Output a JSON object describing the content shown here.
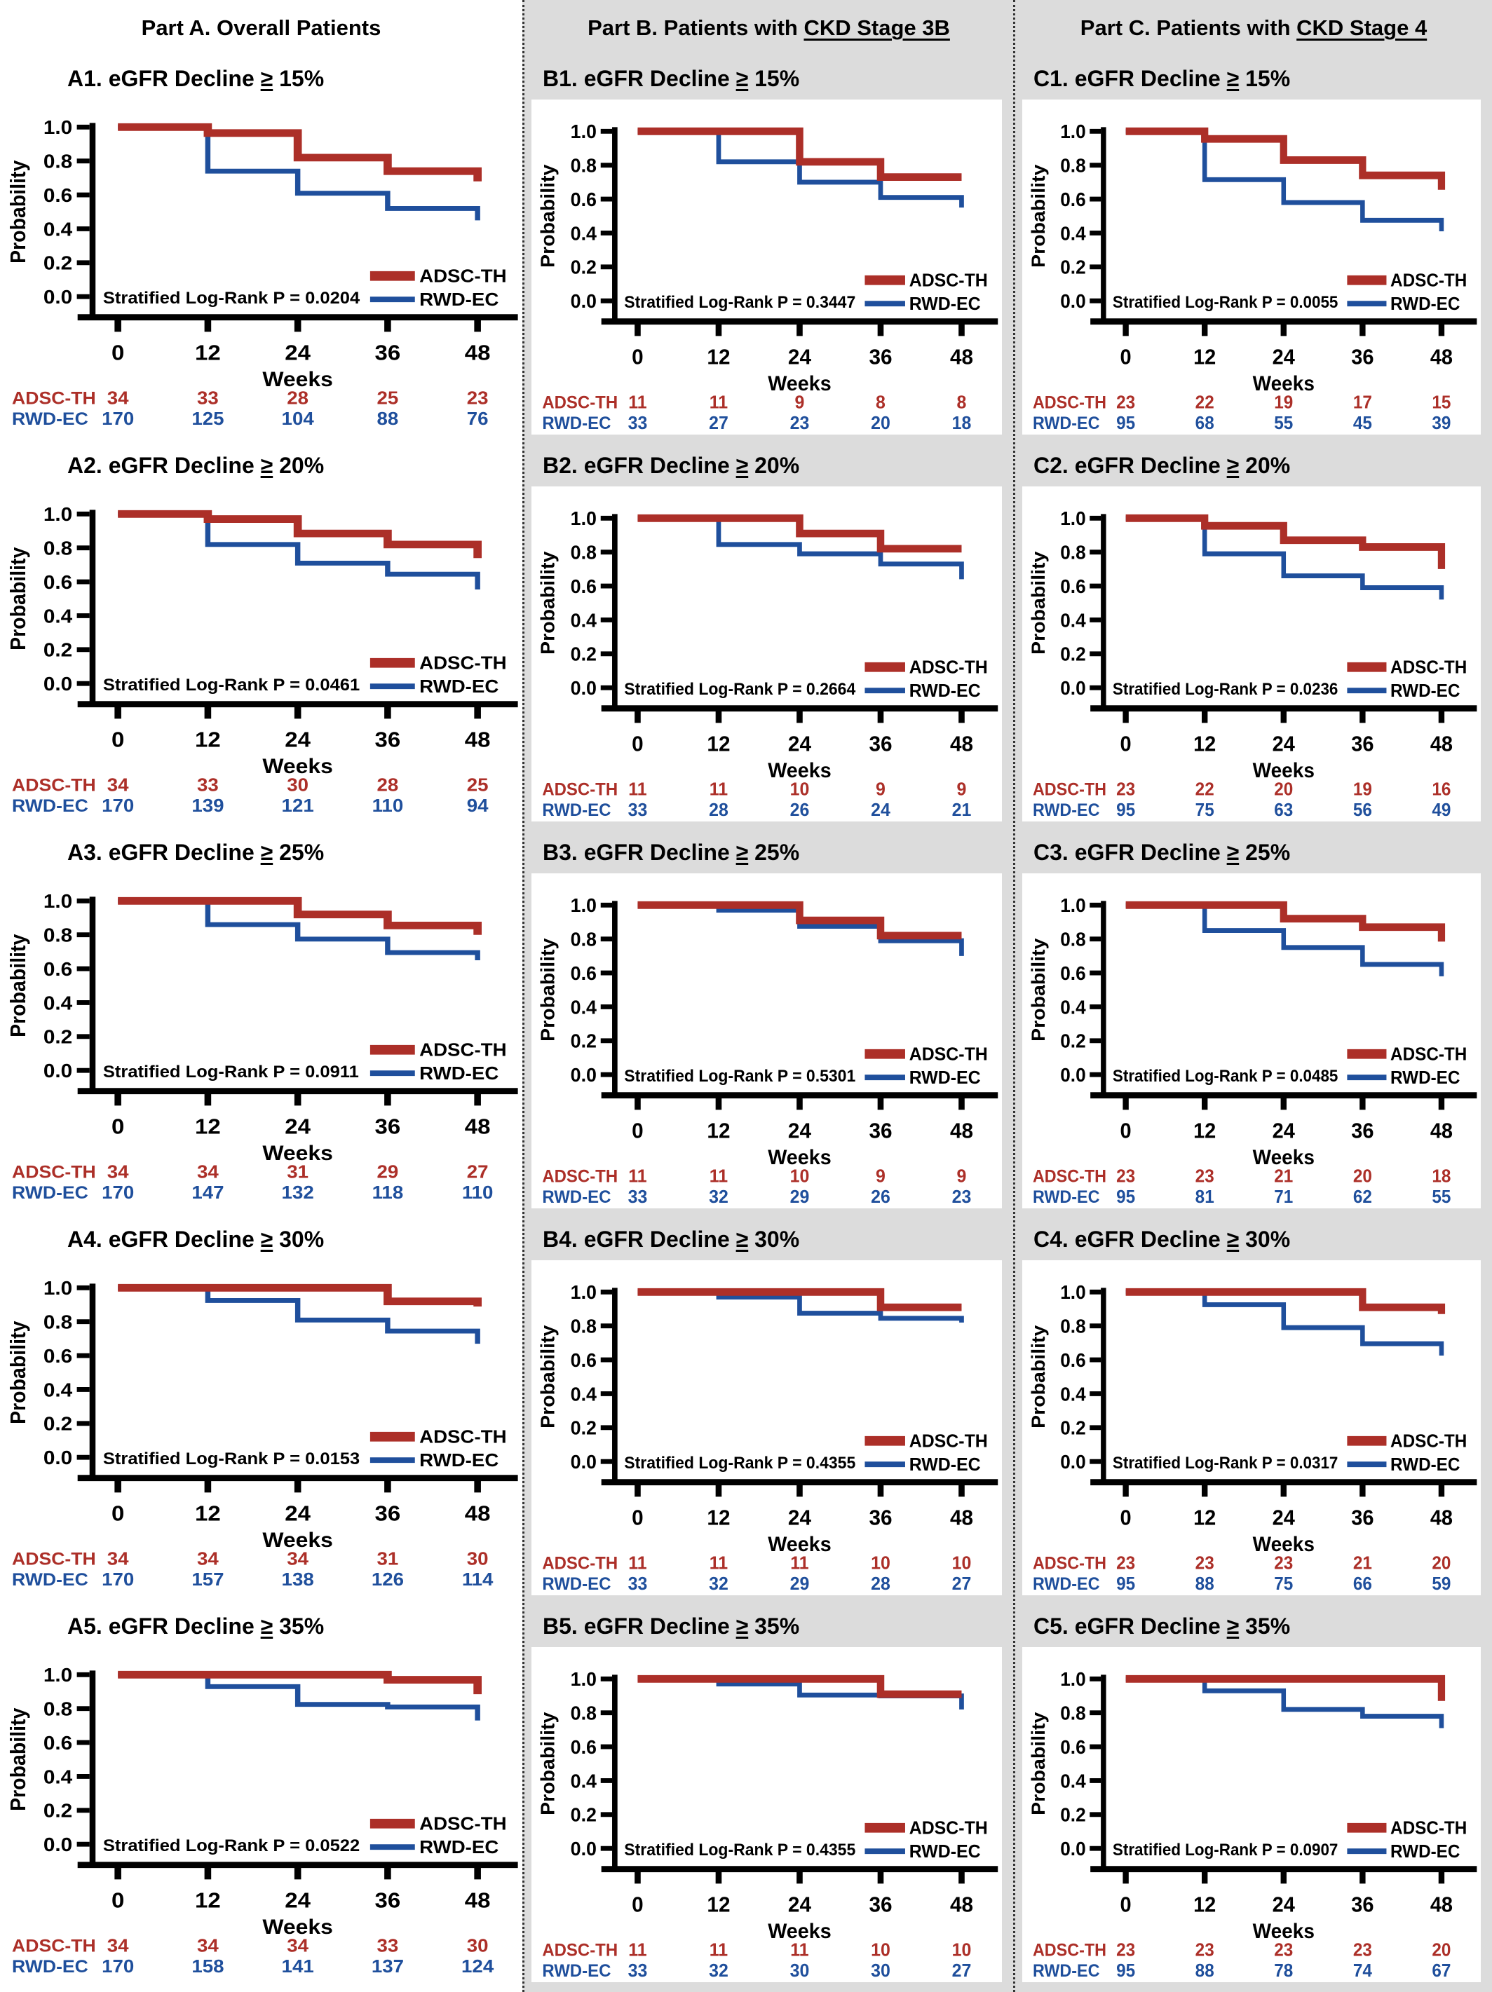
{
  "headers": {
    "a": {
      "text": "Part A. Overall Patients"
    },
    "b": {
      "prefix": "Part B. Patients with ",
      "underlined": "CKD Stage 3B"
    },
    "c": {
      "prefix": "Part C. Patients with ",
      "underlined": "CKD Stage 4"
    }
  },
  "colors": {
    "adsc_th": "#AC2F28",
    "rwd_ec": "#1F4F9C",
    "axis": "#000000",
    "panel_gray": "#dcdcdc"
  },
  "axis": {
    "ylabel": "Probability",
    "xlabel": "Weeks",
    "yticks": [
      "1.0",
      "0.8",
      "0.6",
      "0.4",
      "0.2",
      "0.0"
    ],
    "ytick_values": [
      1.0,
      0.8,
      0.6,
      0.4,
      0.2,
      0.0
    ],
    "xticks": [
      "0",
      "12",
      "24",
      "36",
      "48"
    ],
    "xtick_values": [
      0,
      12,
      24,
      36,
      48
    ],
    "ylim": [
      0,
      1
    ],
    "xlim": [
      0,
      48
    ]
  },
  "legend": {
    "entries": [
      "ADSC-TH",
      "RWD-EC"
    ],
    "position": "bottom-right"
  },
  "chart_data": [
    {
      "id": "A1",
      "column": "a",
      "type": "line",
      "title": "A1. eGFR Decline ≥ 15%",
      "p_label": "Stratified Log-Rank P = 0.0204",
      "p_value": 0.0204,
      "x": [
        0,
        12,
        24,
        36,
        48
      ],
      "series": [
        {
          "name": "ADSC-TH",
          "color": "#AC2F28",
          "steps": [
            1.0,
            0.965,
            0.82,
            0.74,
            0.68
          ],
          "at_risk": [
            34,
            33,
            28,
            25,
            23
          ]
        },
        {
          "name": "RWD-EC",
          "color": "#1F4F9C",
          "steps": [
            1.0,
            0.74,
            0.61,
            0.52,
            0.45
          ],
          "at_risk": [
            170,
            125,
            104,
            88,
            76
          ]
        }
      ]
    },
    {
      "id": "B1",
      "column": "b",
      "type": "line",
      "title": "B1. eGFR Decline ≥ 15%",
      "p_label": "Stratified Log-Rank P = 0.3447",
      "p_value": 0.3447,
      "x": [
        0,
        12,
        24,
        36,
        48
      ],
      "series": [
        {
          "name": "ADSC-TH",
          "color": "#AC2F28",
          "steps": [
            1.0,
            1.0,
            0.82,
            0.73,
            0.73
          ],
          "at_risk": [
            11,
            11,
            9,
            8,
            8
          ]
        },
        {
          "name": "RWD-EC",
          "color": "#1F4F9C",
          "steps": [
            1.0,
            0.82,
            0.7,
            0.61,
            0.55
          ],
          "at_risk": [
            33,
            27,
            23,
            20,
            18
          ]
        }
      ]
    },
    {
      "id": "C1",
      "column": "c",
      "type": "line",
      "title": "C1. eGFR Decline ≥ 15%",
      "p_label": "Stratified Log-Rank P = 0.0055",
      "p_value": 0.0055,
      "x": [
        0,
        12,
        24,
        36,
        48
      ],
      "series": [
        {
          "name": "ADSC-TH",
          "color": "#AC2F28",
          "steps": [
            1.0,
            0.955,
            0.83,
            0.74,
            0.655
          ],
          "at_risk": [
            23,
            22,
            19,
            17,
            15
          ]
        },
        {
          "name": "RWD-EC",
          "color": "#1F4F9C",
          "steps": [
            1.0,
            0.715,
            0.58,
            0.475,
            0.41
          ],
          "at_risk": [
            95,
            68,
            55,
            45,
            39
          ]
        }
      ]
    },
    {
      "id": "A2",
      "column": "a",
      "type": "line",
      "title": "A2. eGFR Decline ≥ 20%",
      "p_label": "Stratified Log-Rank P = 0.0461",
      "p_value": 0.0461,
      "x": [
        0,
        12,
        24,
        36,
        48
      ],
      "series": [
        {
          "name": "ADSC-TH",
          "color": "#AC2F28",
          "steps": [
            1.0,
            0.97,
            0.885,
            0.82,
            0.74
          ],
          "at_risk": [
            34,
            33,
            30,
            28,
            25
          ]
        },
        {
          "name": "RWD-EC",
          "color": "#1F4F9C",
          "steps": [
            1.0,
            0.82,
            0.71,
            0.645,
            0.555
          ],
          "at_risk": [
            170,
            139,
            121,
            110,
            94
          ]
        }
      ]
    },
    {
      "id": "B2",
      "column": "b",
      "type": "line",
      "title": "B2. eGFR Decline ≥ 20%",
      "p_label": "Stratified Log-Rank P = 0.2664",
      "p_value": 0.2664,
      "x": [
        0,
        12,
        24,
        36,
        48
      ],
      "series": [
        {
          "name": "ADSC-TH",
          "color": "#AC2F28",
          "steps": [
            1.0,
            1.0,
            0.91,
            0.82,
            0.82
          ],
          "at_risk": [
            11,
            11,
            10,
            9,
            9
          ]
        },
        {
          "name": "RWD-EC",
          "color": "#1F4F9C",
          "steps": [
            1.0,
            0.845,
            0.79,
            0.73,
            0.64
          ],
          "at_risk": [
            33,
            28,
            26,
            24,
            21
          ]
        }
      ]
    },
    {
      "id": "C2",
      "column": "c",
      "type": "line",
      "title": "C2. eGFR Decline ≥ 20%",
      "p_label": "Stratified Log-Rank P = 0.0236",
      "p_value": 0.0236,
      "x": [
        0,
        12,
        24,
        36,
        48
      ],
      "series": [
        {
          "name": "ADSC-TH",
          "color": "#AC2F28",
          "steps": [
            1.0,
            0.955,
            0.87,
            0.83,
            0.7
          ],
          "at_risk": [
            23,
            22,
            20,
            19,
            16
          ]
        },
        {
          "name": "RWD-EC",
          "color": "#1F4F9C",
          "steps": [
            1.0,
            0.79,
            0.66,
            0.59,
            0.52
          ],
          "at_risk": [
            95,
            75,
            63,
            56,
            49
          ]
        }
      ]
    },
    {
      "id": "A3",
      "column": "a",
      "type": "line",
      "title": "A3. eGFR Decline ≥ 25%",
      "p_label": "Stratified Log-Rank P = 0.0911",
      "p_value": 0.0911,
      "x": [
        0,
        12,
        24,
        36,
        48
      ],
      "series": [
        {
          "name": "ADSC-TH",
          "color": "#AC2F28",
          "steps": [
            1.0,
            1.0,
            0.92,
            0.855,
            0.8
          ],
          "at_risk": [
            34,
            34,
            31,
            29,
            27
          ]
        },
        {
          "name": "RWD-EC",
          "color": "#1F4F9C",
          "steps": [
            1.0,
            0.86,
            0.775,
            0.695,
            0.65
          ],
          "at_risk": [
            170,
            147,
            132,
            118,
            110
          ]
        }
      ]
    },
    {
      "id": "B3",
      "column": "b",
      "type": "line",
      "title": "B3. eGFR Decline ≥ 25%",
      "p_label": "Stratified Log-Rank P = 0.5301",
      "p_value": 0.5301,
      "x": [
        0,
        12,
        24,
        36,
        48
      ],
      "series": [
        {
          "name": "ADSC-TH",
          "color": "#AC2F28",
          "steps": [
            1.0,
            1.0,
            0.91,
            0.82,
            0.82
          ],
          "at_risk": [
            11,
            11,
            10,
            9,
            9
          ]
        },
        {
          "name": "RWD-EC",
          "color": "#1F4F9C",
          "steps": [
            1.0,
            0.97,
            0.875,
            0.79,
            0.7
          ],
          "at_risk": [
            33,
            32,
            29,
            26,
            23
          ]
        }
      ]
    },
    {
      "id": "C3",
      "column": "c",
      "type": "line",
      "title": "C3. eGFR Decline ≥ 25%",
      "p_label": "Stratified Log-Rank P = 0.0485",
      "p_value": 0.0485,
      "x": [
        0,
        12,
        24,
        36,
        48
      ],
      "series": [
        {
          "name": "ADSC-TH",
          "color": "#AC2F28",
          "steps": [
            1.0,
            1.0,
            0.92,
            0.87,
            0.785
          ],
          "at_risk": [
            23,
            23,
            21,
            20,
            18
          ]
        },
        {
          "name": "RWD-EC",
          "color": "#1F4F9C",
          "steps": [
            1.0,
            0.85,
            0.75,
            0.65,
            0.58
          ],
          "at_risk": [
            95,
            81,
            71,
            62,
            55
          ]
        }
      ]
    },
    {
      "id": "A4",
      "column": "a",
      "type": "line",
      "title": "A4. eGFR Decline ≥ 30%",
      "p_label": "Stratified Log-Rank P = 0.0153",
      "p_value": 0.0153,
      "x": [
        0,
        12,
        24,
        36,
        48
      ],
      "series": [
        {
          "name": "ADSC-TH",
          "color": "#AC2F28",
          "steps": [
            1.0,
            1.0,
            1.0,
            0.92,
            0.89
          ],
          "at_risk": [
            34,
            34,
            34,
            31,
            30
          ]
        },
        {
          "name": "RWD-EC",
          "color": "#1F4F9C",
          "steps": [
            1.0,
            0.925,
            0.81,
            0.745,
            0.67
          ],
          "at_risk": [
            170,
            157,
            138,
            126,
            114
          ]
        }
      ]
    },
    {
      "id": "B4",
      "column": "b",
      "type": "line",
      "title": "B4. eGFR Decline ≥ 30%",
      "p_label": "Stratified Log-Rank P = 0.4355",
      "p_value": 0.4355,
      "x": [
        0,
        12,
        24,
        36,
        48
      ],
      "series": [
        {
          "name": "ADSC-TH",
          "color": "#AC2F28",
          "steps": [
            1.0,
            1.0,
            1.0,
            0.91,
            0.91
          ],
          "at_risk": [
            11,
            11,
            11,
            10,
            10
          ]
        },
        {
          "name": "RWD-EC",
          "color": "#1F4F9C",
          "steps": [
            1.0,
            0.97,
            0.875,
            0.845,
            0.82
          ],
          "at_risk": [
            33,
            32,
            29,
            28,
            27
          ]
        }
      ]
    },
    {
      "id": "C4",
      "column": "c",
      "type": "line",
      "title": "C4. eGFR Decline ≥ 30%",
      "p_label": "Stratified Log-Rank P = 0.0317",
      "p_value": 0.0317,
      "x": [
        0,
        12,
        24,
        36,
        48
      ],
      "series": [
        {
          "name": "ADSC-TH",
          "color": "#AC2F28",
          "steps": [
            1.0,
            1.0,
            1.0,
            0.91,
            0.87
          ],
          "at_risk": [
            23,
            23,
            23,
            21,
            20
          ]
        },
        {
          "name": "RWD-EC",
          "color": "#1F4F9C",
          "steps": [
            1.0,
            0.925,
            0.79,
            0.695,
            0.625
          ],
          "at_risk": [
            95,
            88,
            75,
            66,
            59
          ]
        }
      ]
    },
    {
      "id": "A5",
      "column": "a",
      "type": "line",
      "title": "A5. eGFR Decline ≥ 35%",
      "p_label": "Stratified Log-Rank P = 0.0522",
      "p_value": 0.0522,
      "x": [
        0,
        12,
        24,
        36,
        48
      ],
      "series": [
        {
          "name": "ADSC-TH",
          "color": "#AC2F28",
          "steps": [
            1.0,
            1.0,
            1.0,
            0.97,
            0.885
          ],
          "at_risk": [
            34,
            34,
            34,
            33,
            30
          ]
        },
        {
          "name": "RWD-EC",
          "color": "#1F4F9C",
          "steps": [
            1.0,
            0.93,
            0.825,
            0.81,
            0.73
          ],
          "at_risk": [
            170,
            158,
            141,
            137,
            124
          ]
        }
      ]
    },
    {
      "id": "B5",
      "column": "b",
      "type": "line",
      "title": "B5. eGFR Decline ≥ 35%",
      "p_label": "Stratified Log-Rank P = 0.4355",
      "p_value": 0.4355,
      "x": [
        0,
        12,
        24,
        36,
        48
      ],
      "series": [
        {
          "name": "ADSC-TH",
          "color": "#AC2F28",
          "steps": [
            1.0,
            1.0,
            1.0,
            0.91,
            0.91
          ],
          "at_risk": [
            11,
            11,
            11,
            10,
            10
          ]
        },
        {
          "name": "RWD-EC",
          "color": "#1F4F9C",
          "steps": [
            1.0,
            0.97,
            0.905,
            0.9,
            0.82
          ],
          "at_risk": [
            33,
            32,
            30,
            30,
            27
          ]
        }
      ]
    },
    {
      "id": "C5",
      "column": "c",
      "type": "line",
      "title": "C5. eGFR Decline ≥ 35%",
      "p_label": "Stratified Log-Rank P = 0.0907",
      "p_value": 0.0907,
      "x": [
        0,
        12,
        24,
        36,
        48
      ],
      "series": [
        {
          "name": "ADSC-TH",
          "color": "#AC2F28",
          "steps": [
            1.0,
            1.0,
            1.0,
            1.0,
            0.87
          ],
          "at_risk": [
            23,
            23,
            23,
            23,
            20
          ]
        },
        {
          "name": "RWD-EC",
          "color": "#1F4F9C",
          "steps": [
            1.0,
            0.93,
            0.82,
            0.78,
            0.71
          ],
          "at_risk": [
            95,
            88,
            78,
            74,
            67
          ]
        }
      ]
    }
  ]
}
